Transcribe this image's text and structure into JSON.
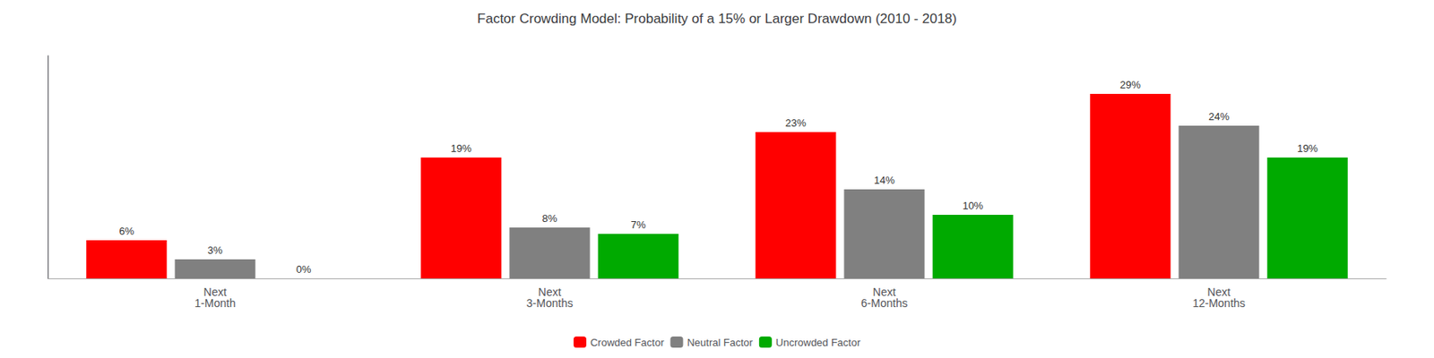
{
  "chart_data": {
    "type": "bar",
    "title": "Factor Crowding Model: Probability of a 15% or Larger Drawdown (2010 - 2018)",
    "categories": [
      "Next\n1-Month",
      "Next\n3-Months",
      "Next\n6-Months",
      "Next\n12-Months"
    ],
    "series": [
      {
        "name": "Crowded Factor",
        "color": "#FF0000",
        "values": [
          6,
          19,
          23,
          29
        ],
        "value_labels": [
          "6%",
          "19%",
          "23%",
          "29%"
        ]
      },
      {
        "name": "Neutral Factor",
        "color": "#808080",
        "values": [
          3,
          8,
          14,
          24
        ],
        "value_labels": [
          "3%",
          "8%",
          "14%",
          "24%"
        ]
      },
      {
        "name": "Uncrowded Factor",
        "color": "#00AA00",
        "values": [
          0,
          7,
          10,
          19
        ],
        "value_labels": [
          "0%",
          "7%",
          "10%",
          "19%"
        ]
      }
    ],
    "ylim": [
      0,
      35
    ],
    "grid": false,
    "legend": "bottom",
    "data_labels": true,
    "tick_labels": "x"
  }
}
